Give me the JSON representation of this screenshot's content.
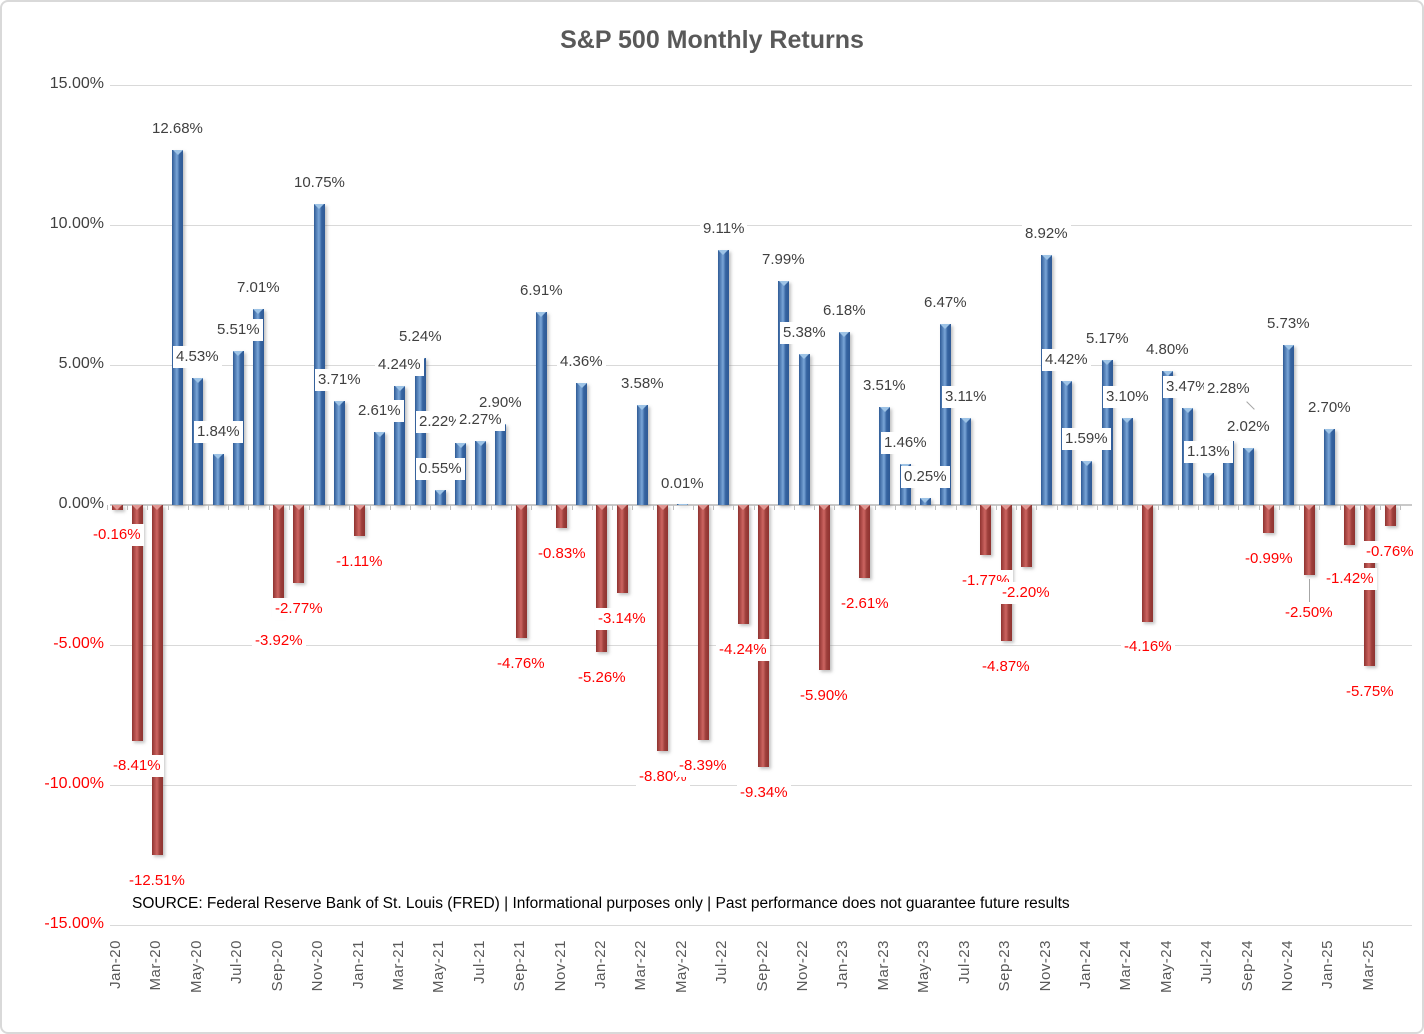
{
  "title": "S&P 500 Monthly Returns",
  "source_note": "SOURCE: Federal Reserve Bank of St. Louis (FRED) | Informational purposes only | Past performance does not guarantee future results",
  "y_axis": {
    "ticks": [
      {
        "label": "15.00%",
        "value": 15
      },
      {
        "label": "10.00%",
        "value": 10
      },
      {
        "label": "5.00%",
        "value": 5
      },
      {
        "label": "0.00%",
        "value": 0
      },
      {
        "label": "-5.00%",
        "value": -5
      },
      {
        "label": "-10.00%",
        "value": -10
      },
      {
        "label": "-15.00%",
        "value": -15
      }
    ]
  },
  "x_axis": {
    "tick_labels": [
      "Jan-20",
      "Mar-20",
      "May-20",
      "Jul-20",
      "Sep-20",
      "Nov-20",
      "Jan-21",
      "Mar-21",
      "May-21",
      "Jul-21",
      "Sep-21",
      "Nov-21",
      "Jan-22",
      "Mar-22",
      "May-22",
      "Jul-22",
      "Sep-22",
      "Nov-22",
      "Jan-23",
      "Mar-23",
      "May-23",
      "Jul-23",
      "Sep-23",
      "Nov-23",
      "Jan-24",
      "Mar-24",
      "May-24",
      "Jul-24",
      "Sep-24",
      "Nov-24",
      "Jan-25",
      "Mar-25"
    ]
  },
  "chart_data": {
    "type": "bar",
    "title": "S&P 500 Monthly Returns",
    "x": [
      "Jan-20",
      "Feb-20",
      "Mar-20",
      "Apr-20",
      "May-20",
      "Jun-20",
      "Jul-20",
      "Aug-20",
      "Sep-20",
      "Oct-20",
      "Nov-20",
      "Dec-20",
      "Jan-21",
      "Feb-21",
      "Mar-21",
      "Apr-21",
      "May-21",
      "Jun-21",
      "Jul-21",
      "Aug-21",
      "Sep-21",
      "Oct-21",
      "Nov-21",
      "Dec-21",
      "Jan-22",
      "Feb-22",
      "Mar-22",
      "Apr-22",
      "May-22",
      "Jun-22",
      "Jul-22",
      "Aug-22",
      "Sep-22",
      "Oct-22",
      "Nov-22",
      "Dec-22",
      "Jan-23",
      "Feb-23",
      "Mar-23",
      "Apr-23",
      "May-23",
      "Jun-23",
      "Jul-23",
      "Aug-23",
      "Sep-23",
      "Oct-23",
      "Nov-23",
      "Dec-23",
      "Jan-24",
      "Feb-24",
      "Mar-24",
      "Apr-24",
      "May-24",
      "Jun-24",
      "Jul-24",
      "Aug-24",
      "Sep-24",
      "Oct-24",
      "Nov-24",
      "Dec-24",
      "Jan-25",
      "Feb-25",
      "Mar-25",
      "Apr-25"
    ],
    "values": [
      -0.16,
      -8.41,
      -12.51,
      12.68,
      4.53,
      1.84,
      5.51,
      7.01,
      -3.92,
      -2.77,
      10.75,
      3.71,
      -1.11,
      2.61,
      4.24,
      5.24,
      0.55,
      2.22,
      2.27,
      2.9,
      -4.76,
      6.91,
      -0.83,
      4.36,
      -5.26,
      -3.14,
      3.58,
      -8.8,
      0.01,
      -8.39,
      9.11,
      -4.24,
      -9.34,
      7.99,
      5.38,
      -5.9,
      6.18,
      -2.61,
      3.51,
      1.46,
      0.25,
      6.47,
      3.11,
      -1.77,
      -4.87,
      -2.2,
      8.92,
      4.42,
      1.59,
      5.17,
      3.1,
      -4.16,
      4.8,
      3.47,
      1.13,
      2.28,
      2.02,
      -0.99,
      5.73,
      -2.5,
      2.7,
      -1.42,
      -5.75,
      -0.76
    ],
    "data_labels": [
      "-0.16%",
      "-8.41%",
      "-12.51%",
      "12.68%",
      "4.53%",
      "1.84%",
      "5.51%",
      "7.01%",
      "-3.92%",
      "-2.77%",
      "10.75%",
      "3.71%",
      "-1.11%",
      "2.61%",
      "4.24%",
      "5.24%",
      "0.55%",
      "2.22%",
      "2.27%",
      "2.90%",
      "-4.76%",
      "6.91%",
      "-0.83%",
      "4.36%",
      "-5.26%",
      "-3.14%",
      "3.58%",
      "-8.80%",
      "0.01%",
      "-8.39%",
      "9.11%",
      "-4.24%",
      "-9.34%",
      "7.99%",
      "5.38%",
      "-5.90%",
      "6.18%",
      "-2.61%",
      "3.51%",
      "1.46%",
      "0.25%",
      "6.47%",
      "3.11%",
      "-1.77%",
      "-4.87%",
      "-2.20%",
      "8.92%",
      "4.42%",
      "1.59%",
      "5.17%",
      "3.10%",
      "-4.16%",
      "4.80%",
      "3.47%",
      "1.13%",
      "2.28%",
      "2.02%",
      "-0.99%",
      "5.73%",
      "-2.50%",
      "2.70%",
      "-1.42%",
      "-5.75%",
      "-0.76%"
    ],
    "ylim": [
      -15,
      15
    ],
    "gridline_step": 5,
    "grid": "on",
    "legend": "none",
    "positive_color": "#4F81BD",
    "negative_color": "#C0504D",
    "positive_label_color": "#404040",
    "negative_label_color": "#FF0000"
  }
}
